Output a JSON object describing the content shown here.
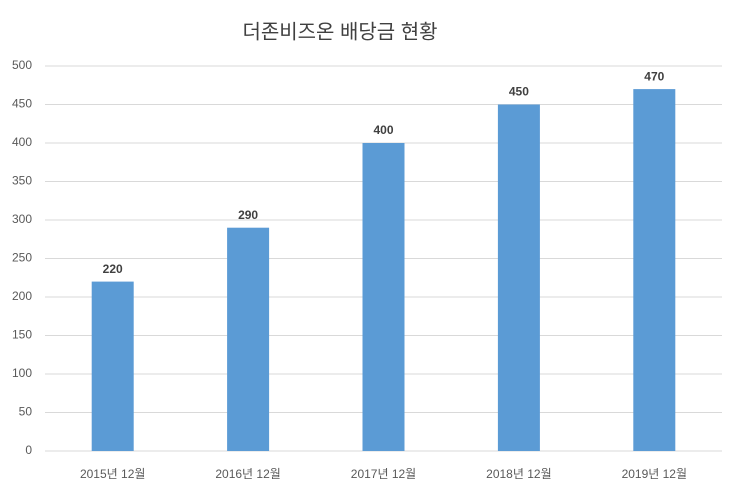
{
  "chart_data": {
    "type": "bar",
    "title": "더존비즈온 배당금 현황",
    "categories": [
      "2015년 12월",
      "2016년 12월",
      "2017년 12월",
      "2018년 12월",
      "2019년 12월"
    ],
    "values": [
      220,
      290,
      400,
      450,
      470
    ],
    "color": "#5b9bd5",
    "ylim": [
      0,
      500
    ],
    "yticks": [
      0,
      50,
      100,
      150,
      200,
      250,
      300,
      350,
      400,
      450,
      500
    ],
    "grid": true
  }
}
